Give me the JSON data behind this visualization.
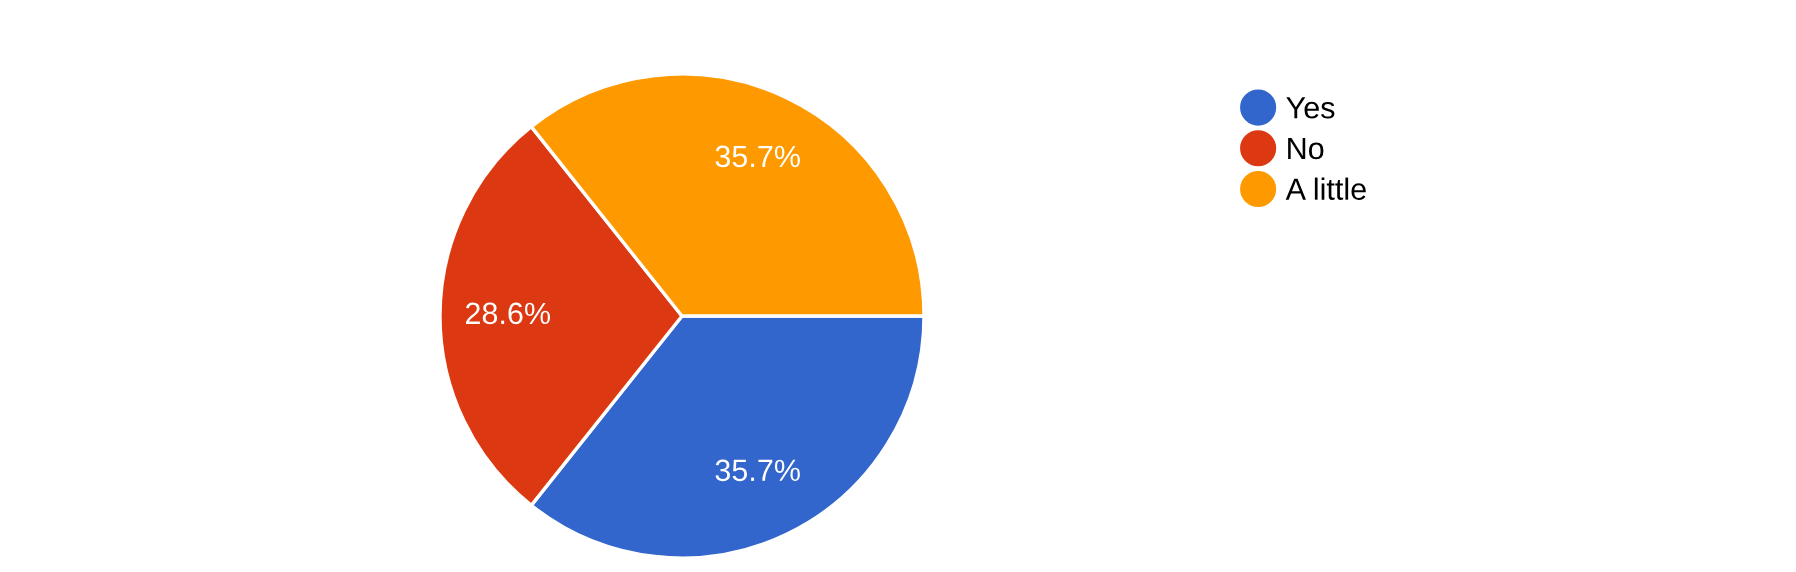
{
  "chart_data": {
    "type": "pie",
    "categories": [
      "Yes",
      "No",
      "A little"
    ],
    "values": [
      35.7,
      28.6,
      35.7
    ],
    "value_labels": [
      "35.7%",
      "28.6%",
      "35.7%"
    ],
    "colors": [
      "#3366cc",
      "#dc3912",
      "#ff9900"
    ],
    "legend": "top right"
  }
}
